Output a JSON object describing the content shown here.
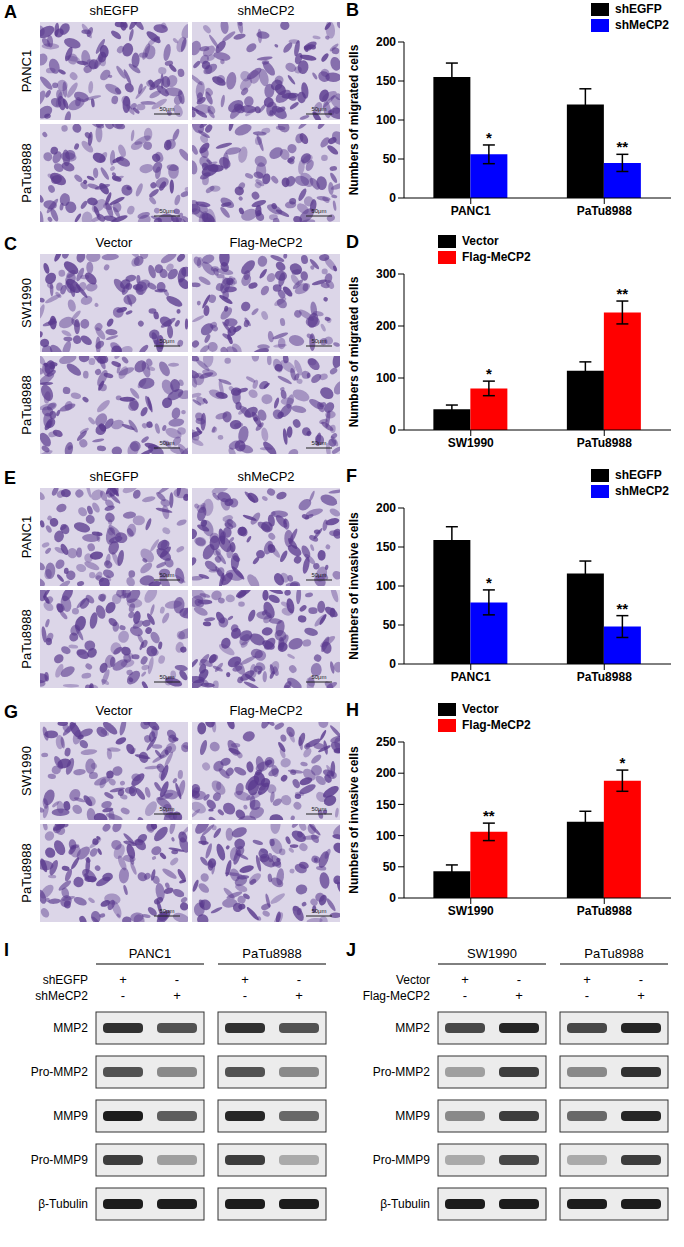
{
  "chart_data": [
    {
      "panel": "B",
      "type": "bar",
      "categories": [
        "PANC1",
        "PaTu8988"
      ],
      "ylabel": "Numbers of migrated cells",
      "ylim": [
        0,
        200
      ],
      "yticks": [
        0,
        50,
        100,
        150,
        200
      ],
      "grid": false,
      "legend": "upper right",
      "series": [
        {
          "name": "shEGFP",
          "color": "#000000",
          "values": [
            155,
            120
          ],
          "errors": [
            18,
            20
          ]
        },
        {
          "name": "shMeCP2",
          "color": "#0000ff",
          "values": [
            56,
            45
          ],
          "errors": [
            12,
            11
          ],
          "significance": [
            "*",
            "**"
          ]
        }
      ]
    },
    {
      "panel": "D",
      "type": "bar",
      "categories": [
        "SW1990",
        "PaTu8988"
      ],
      "ylabel": "Numbers of migrated cells",
      "ylim": [
        0,
        300
      ],
      "yticks": [
        0,
        100,
        200,
        300
      ],
      "grid": false,
      "legend": "upper left",
      "series": [
        {
          "name": "Vector",
          "color": "#000000",
          "values": [
            40,
            114
          ],
          "errors": [
            8,
            17
          ]
        },
        {
          "name": "Flag-MeCP2",
          "color": "#ff0000",
          "values": [
            80,
            226
          ],
          "errors": [
            14,
            22
          ],
          "significance": [
            "*",
            "**"
          ]
        }
      ]
    },
    {
      "panel": "F",
      "type": "bar",
      "categories": [
        "PANC1",
        "PaTu8988"
      ],
      "ylabel": "Numbers of invasive cells",
      "ylim": [
        0,
        200
      ],
      "yticks": [
        0,
        50,
        100,
        150,
        200
      ],
      "grid": false,
      "legend": "upper right",
      "series": [
        {
          "name": "shEGFP",
          "color": "#000000",
          "values": [
            159,
            116
          ],
          "errors": [
            17,
            16
          ]
        },
        {
          "name": "shMeCP2",
          "color": "#0000ff",
          "values": [
            79,
            48
          ],
          "errors": [
            16,
            14
          ],
          "significance": [
            "*",
            "**"
          ]
        }
      ]
    },
    {
      "panel": "H",
      "type": "bar",
      "categories": [
        "SW1990",
        "PaTu8988"
      ],
      "ylabel": "Numbers of invasive cells",
      "ylim": [
        0,
        250
      ],
      "yticks": [
        0,
        50,
        100,
        150,
        200,
        250
      ],
      "grid": false,
      "legend": "upper left",
      "series": [
        {
          "name": "Vector",
          "color": "#000000",
          "values": [
            43,
            122
          ],
          "errors": [
            10,
            17
          ]
        },
        {
          "name": "Flag-MeCP2",
          "color": "#ff0000",
          "values": [
            106,
            188
          ],
          "errors": [
            14,
            17
          ],
          "significance": [
            "**",
            "*"
          ]
        }
      ]
    }
  ],
  "image_panels": [
    {
      "panel": "A",
      "columns": [
        "shEGFP",
        "shMeCP2"
      ],
      "rows": [
        "PANC1",
        "PaTu8988"
      ],
      "scale_bar": "50μm"
    },
    {
      "panel": "C",
      "columns": [
        "Vector",
        "Flag-MeCP2"
      ],
      "rows": [
        "SW1990",
        "PaTu8988"
      ],
      "scale_bar": "50μm"
    },
    {
      "panel": "E",
      "columns": [
        "shEGFP",
        "shMeCP2"
      ],
      "rows": [
        "PANC1",
        "PaTu8988"
      ],
      "scale_bar": "50μm"
    },
    {
      "panel": "G",
      "columns": [
        "Vector",
        "Flag-MeCP2"
      ],
      "rows": [
        "SW1990",
        "PaTu8988"
      ],
      "scale_bar": "50μm"
    }
  ],
  "blots": [
    {
      "panel": "I",
      "cell_lines": [
        "PANC1",
        "PaTu8988"
      ],
      "conditions": [
        "shEGFP",
        "shMeCP2"
      ],
      "present": "+",
      "absent": "-",
      "proteins": [
        "MMP2",
        "Pro-MMP2",
        "MMP9",
        "Pro-MMP9",
        "β-Tubulin"
      ]
    },
    {
      "panel": "J",
      "cell_lines": [
        "SW1990",
        "PaTu8988"
      ],
      "conditions": [
        "Vector",
        "Flag-MeCP2"
      ],
      "present": "+",
      "absent": "-",
      "proteins": [
        "MMP2",
        "Pro-MMP2",
        "MMP9",
        "Pro-MMP9",
        "β-Tubulin"
      ]
    }
  ]
}
